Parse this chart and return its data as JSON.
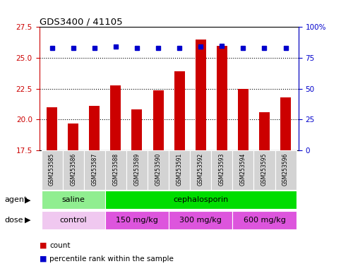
{
  "title": "GDS3400 / 41105",
  "samples": [
    "GSM253585",
    "GSM253586",
    "GSM253587",
    "GSM253588",
    "GSM253589",
    "GSM253590",
    "GSM253591",
    "GSM253592",
    "GSM253593",
    "GSM253594",
    "GSM253595",
    "GSM253596"
  ],
  "counts": [
    21.0,
    19.7,
    21.1,
    22.8,
    20.8,
    22.4,
    23.9,
    26.5,
    26.0,
    22.5,
    20.6,
    21.8
  ],
  "percentile_ranks": [
    83,
    83,
    83,
    84,
    83,
    83,
    83,
    84,
    85,
    83,
    83,
    83
  ],
  "ylim_left": [
    17.5,
    27.5
  ],
  "ylim_right": [
    0,
    100
  ],
  "yticks_left": [
    17.5,
    20.0,
    22.5,
    25.0,
    27.5
  ],
  "yticks_right": [
    0,
    25,
    50,
    75,
    100
  ],
  "bar_color": "#cc0000",
  "dot_color": "#0000cc",
  "bar_width": 0.5,
  "agent_groups": [
    {
      "label": "saline",
      "color": "#90ee90",
      "start": 0,
      "end": 3
    },
    {
      "label": "cephalosporin",
      "color": "#00dd00",
      "start": 3,
      "end": 12
    }
  ],
  "dose_groups": [
    {
      "label": "control",
      "color": "#f0c8f0",
      "start": 0,
      "end": 3
    },
    {
      "label": "150 mg/kg",
      "color": "#dd55dd",
      "start": 3,
      "end": 6
    },
    {
      "label": "300 mg/kg",
      "color": "#dd55dd",
      "start": 6,
      "end": 9
    },
    {
      "label": "600 mg/kg",
      "color": "#dd55dd",
      "start": 9,
      "end": 12
    }
  ],
  "legend_count_color": "#cc0000",
  "legend_dot_color": "#0000cc",
  "gridlines": [
    20.0,
    22.5,
    25.0
  ]
}
